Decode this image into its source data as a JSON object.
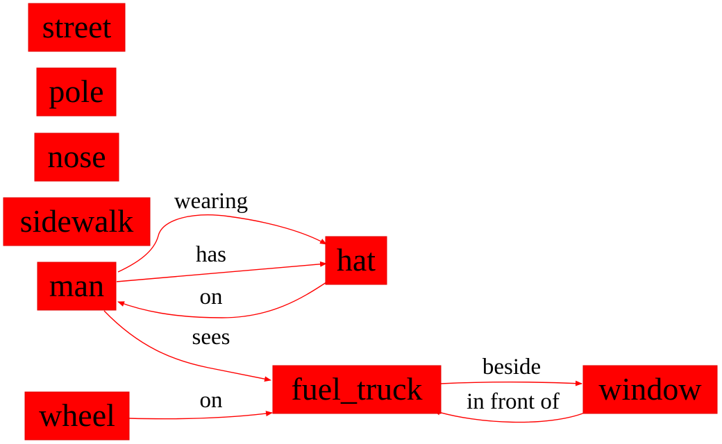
{
  "graph": {
    "node_color": "#ff0000",
    "edge_color": "#ff0000",
    "label_color": "#000000",
    "nodes": {
      "street": "street",
      "pole": "pole",
      "nose": "nose",
      "sidewalk": "sidewalk",
      "man": "man",
      "hat": "hat",
      "fuel_truck": "fuel_truck",
      "wheel": "wheel",
      "window": "window"
    },
    "edges": {
      "man_wearing_hat": "wearing",
      "man_has_hat": "has",
      "hat_on_man": "on",
      "man_sees_fuel_truck": "sees",
      "wheel_on_fuel_truck": "on",
      "fuel_truck_beside_window": "beside",
      "window_in_front_of_fuel_truck": "in front of"
    }
  }
}
